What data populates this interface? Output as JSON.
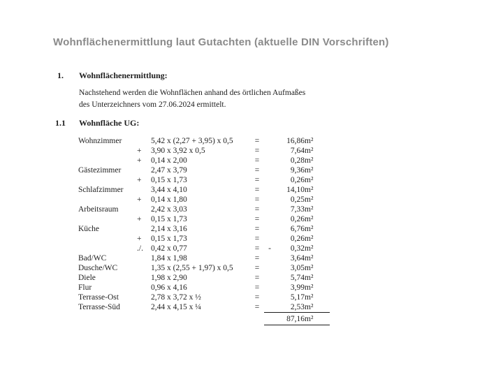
{
  "document": {
    "title": "Wohnflächenermittlung laut Gutachten (aktuelle DIN Vorschriften)",
    "title_color": "#8a8a8a",
    "text_color": "#1e1e1e",
    "section1": {
      "number": "1.",
      "heading": "Wohnflächenermittlung:"
    },
    "paragraph": {
      "line1": "Nachstehend werden die Wohnflächen anhand des örtlichen Aufmaßes",
      "line2": "des Unterzeichners vom 27.06.2024 ermittelt."
    },
    "section11": {
      "number": "1.1",
      "heading": "Wohnfläche UG:"
    }
  },
  "table": {
    "rows": [
      {
        "room": "Wohnzimmer",
        "op": "",
        "formula": "5,42 x (2,27 + 3,95) x 0,5",
        "eq": "=",
        "sign": "",
        "value": "16,86",
        "unit": "m²"
      },
      {
        "room": "",
        "op": "+",
        "formula": "3,90 x 3,92 x 0,5",
        "eq": "=",
        "sign": "",
        "value": "7,64",
        "unit": "m²"
      },
      {
        "room": "",
        "op": "+",
        "formula": "0,14 x 2,00",
        "eq": "=",
        "sign": "",
        "value": "0,28",
        "unit": "m²"
      },
      {
        "room": "Gästezimmer",
        "op": "",
        "formula": "2,47 x 3,79",
        "eq": "=",
        "sign": "",
        "value": "9,36",
        "unit": "m²"
      },
      {
        "room": "",
        "op": "+",
        "formula": "0,15 x 1,73",
        "eq": "=",
        "sign": "",
        "value": "0,26",
        "unit": "m²"
      },
      {
        "room": "Schlafzimmer",
        "op": "",
        "formula": "3,44 x 4,10",
        "eq": "=",
        "sign": "",
        "value": "14,10",
        "unit": "m²"
      },
      {
        "room": "",
        "op": "+",
        "formula": "0,14 x 1,80",
        "eq": "=",
        "sign": "",
        "value": "0,25",
        "unit": "m²"
      },
      {
        "room": "Arbeitsraum",
        "op": "",
        "formula": "2,42 x 3,03",
        "eq": "=",
        "sign": "",
        "value": "7,33",
        "unit": "m²"
      },
      {
        "room": "",
        "op": "+",
        "formula": "0,15 x 1,73",
        "eq": "=",
        "sign": "",
        "value": "0,26",
        "unit": "m²"
      },
      {
        "room": "Küche",
        "op": "",
        "formula": "2,14 x 3,16",
        "eq": "=",
        "sign": "",
        "value": "6,76",
        "unit": "m²"
      },
      {
        "room": "",
        "op": "+",
        "formula": "0,15 x 1,73",
        "eq": "=",
        "sign": "",
        "value": "0,26",
        "unit": "m²"
      },
      {
        "room": "",
        "op": "./.",
        "formula": "0,42 x 0,77",
        "eq": "=",
        "sign": "-",
        "value": "0,32",
        "unit": "m²"
      },
      {
        "room": "Bad/WC",
        "op": "",
        "formula": "1,84 x 1,98",
        "eq": "=",
        "sign": "",
        "value": "3,64",
        "unit": "m²"
      },
      {
        "room": "Dusche/WC",
        "op": "",
        "formula": "1,35 x (2,55 + 1,97) x 0,5",
        "eq": "=",
        "sign": "",
        "value": "3,05",
        "unit": "m²"
      },
      {
        "room": "Diele",
        "op": "",
        "formula": "1,98 x 2,90",
        "eq": "=",
        "sign": "",
        "value": "5,74",
        "unit": "m²"
      },
      {
        "room": "Flur",
        "op": "",
        "formula": "0,96 x 4,16",
        "eq": "=",
        "sign": "",
        "value": "3,99",
        "unit": "m²"
      },
      {
        "room": "Terrasse-Ost",
        "op": "",
        "formula": "2,78 x 3,72 x ½",
        "eq": "=",
        "sign": "",
        "value": "5,17",
        "unit": "m²"
      },
      {
        "room": "Terrasse-Süd",
        "op": "",
        "formula": "2,44 x 4,15 x ¼",
        "eq": "=",
        "sign": "",
        "value": "2,53",
        "unit": "m²"
      }
    ],
    "total": {
      "value": "87,16",
      "unit": "m²"
    }
  }
}
